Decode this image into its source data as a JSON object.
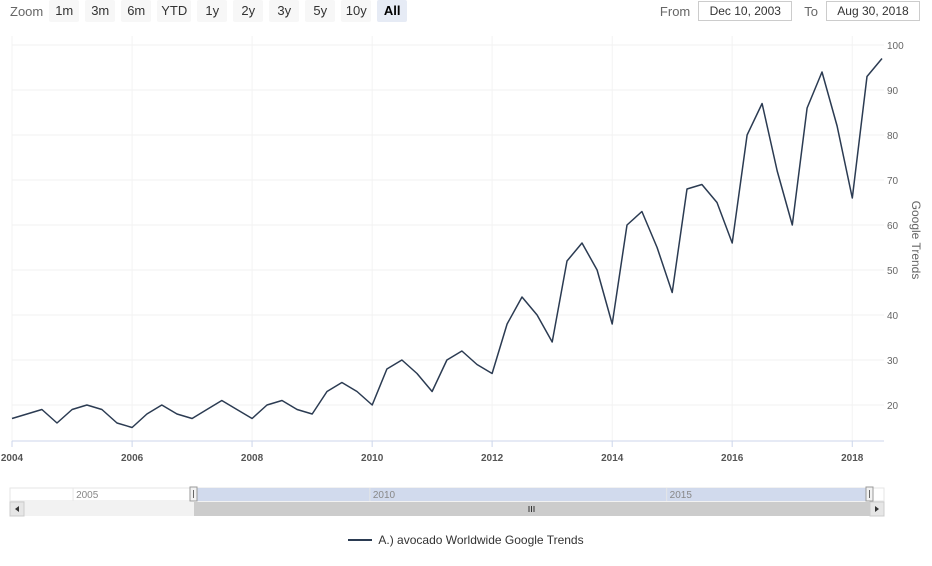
{
  "toolbar": {
    "zoom_label": "Zoom",
    "buttons": [
      "1m",
      "3m",
      "6m",
      "YTD",
      "1y",
      "2y",
      "3y",
      "5y",
      "10y",
      "All"
    ],
    "active": "All",
    "from_label": "From",
    "from_value": "Dec 10, 2003",
    "to_label": "To",
    "to_value": "Aug 30, 2018"
  },
  "legend": {
    "label": "A.) avocado Worldwide Google Trends"
  },
  "colors": {
    "series": "#2b3b52",
    "navigator_fill": "#ccd6eb",
    "scrollbar": "#cccccc"
  },
  "chart_data": {
    "type": "line",
    "title": "",
    "xlabel": "",
    "ylabel": "Google Trends",
    "x_range": [
      "2004-01-01",
      "2018-07-01"
    ],
    "ylim": [
      12,
      102
    ],
    "y_ticks": [
      20,
      30,
      40,
      50,
      60,
      70,
      80,
      90,
      100
    ],
    "x_ticks": [
      "2004",
      "2006",
      "2008",
      "2010",
      "2012",
      "2014",
      "2016",
      "2018"
    ],
    "navigator_ticks": [
      "2005",
      "2010",
      "2015"
    ],
    "grid": true,
    "legend_position": "bottom-center",
    "series": [
      {
        "name": "A.) avocado Worldwide Google Trends",
        "x": [
          "2004-01",
          "2004-04",
          "2004-07",
          "2004-10",
          "2005-01",
          "2005-04",
          "2005-07",
          "2005-10",
          "2006-01",
          "2006-04",
          "2006-07",
          "2006-10",
          "2007-01",
          "2007-04",
          "2007-07",
          "2007-10",
          "2008-01",
          "2008-04",
          "2008-07",
          "2008-10",
          "2009-01",
          "2009-04",
          "2009-07",
          "2009-10",
          "2010-01",
          "2010-04",
          "2010-07",
          "2010-10",
          "2011-01",
          "2011-04",
          "2011-07",
          "2011-10",
          "2012-01",
          "2012-04",
          "2012-07",
          "2012-10",
          "2013-01",
          "2013-04",
          "2013-07",
          "2013-10",
          "2014-01",
          "2014-04",
          "2014-07",
          "2014-10",
          "2015-01",
          "2015-04",
          "2015-07",
          "2015-10",
          "2016-01",
          "2016-04",
          "2016-07",
          "2016-10",
          "2017-01",
          "2017-04",
          "2017-07",
          "2017-10",
          "2018-01",
          "2018-04",
          "2018-07"
        ],
        "values": [
          17,
          18,
          19,
          16,
          19,
          20,
          19,
          16,
          15,
          18,
          20,
          18,
          17,
          19,
          21,
          19,
          17,
          20,
          21,
          19,
          18,
          23,
          25,
          23,
          20,
          28,
          30,
          27,
          23,
          30,
          32,
          29,
          27,
          38,
          44,
          40,
          34,
          52,
          56,
          50,
          38,
          60,
          63,
          55,
          45,
          68,
          69,
          65,
          56,
          80,
          87,
          72,
          60,
          86,
          94,
          82,
          66,
          93,
          97
        ]
      }
    ]
  }
}
